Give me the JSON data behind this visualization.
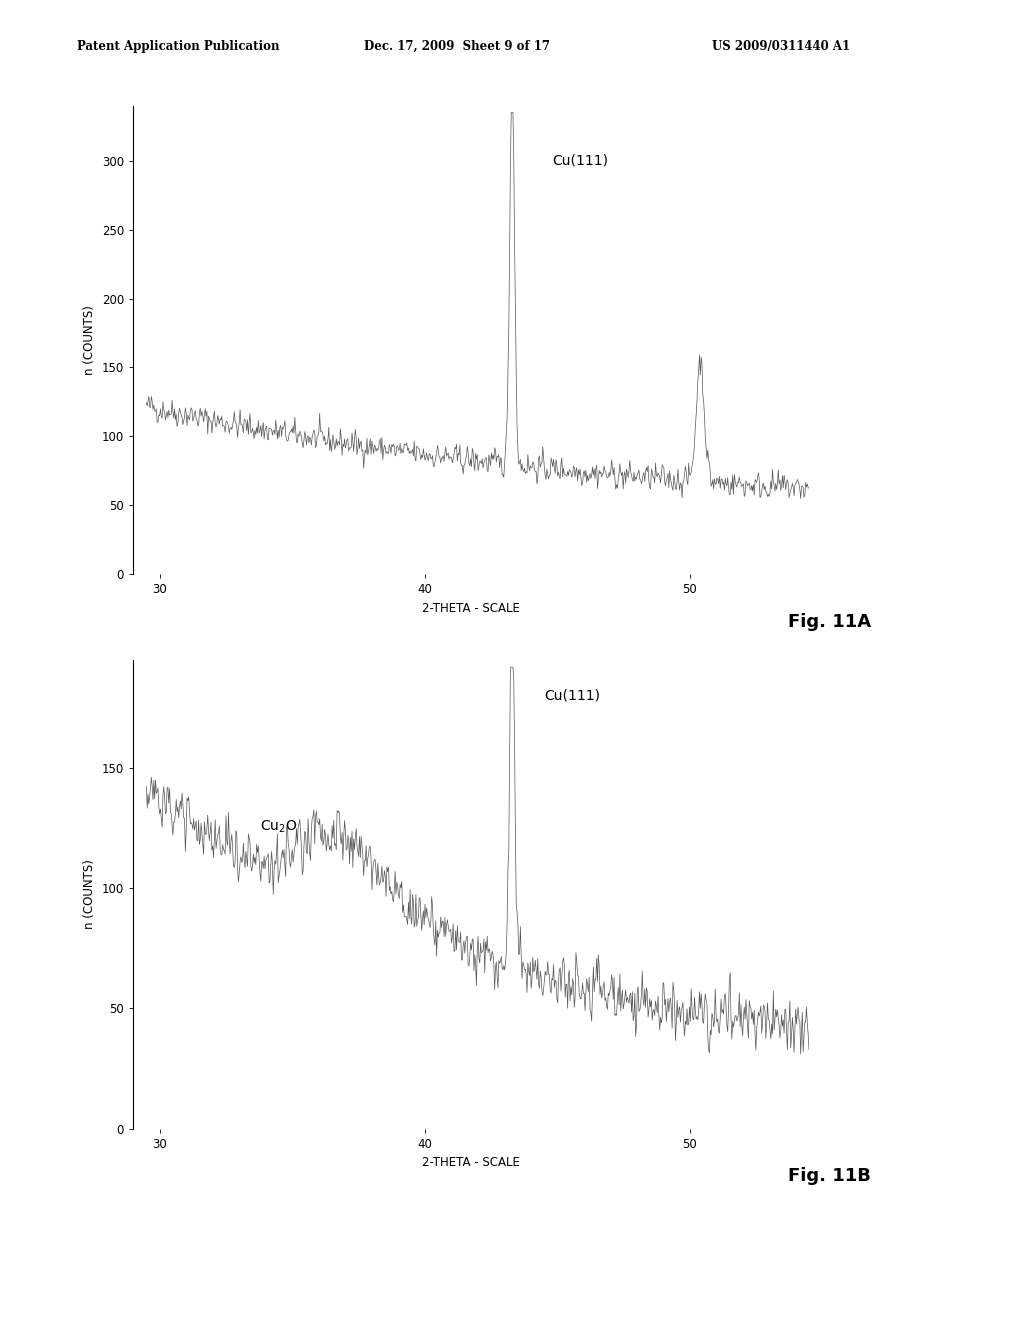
{
  "header_left": "Patent Application Publication",
  "header_mid": "Dec. 17, 2009  Sheet 9 of 17",
  "header_right": "US 2009/0311440 A1",
  "fig_label_A": "Fig. 11A",
  "fig_label_B": "Fig. 11B",
  "xlabel": "2-THETA - SCALE",
  "ylabel": "n (COUNTS)",
  "xlim_A": [
    29.0,
    54.5
  ],
  "ylim_A": [
    0,
    340
  ],
  "yticks_A": [
    0,
    50,
    100,
    150,
    200,
    250,
    300
  ],
  "xticks_A": [
    30,
    40,
    50
  ],
  "xlim_B": [
    29.0,
    54.5
  ],
  "ylim_B": [
    0,
    195
  ],
  "yticks_B": [
    0,
    50,
    100,
    150
  ],
  "xticks_B": [
    30,
    40,
    50
  ],
  "peak_A_x": 43.3,
  "peak_A_label": "Cu(111)",
  "peak_A2_x": 50.4,
  "peak_B_x": 43.3,
  "peak_B_label": "Cu(111)",
  "cu2o_label": "Cu₂O",
  "background_color": "#ffffff",
  "line_color": "#555555",
  "seed": 42
}
